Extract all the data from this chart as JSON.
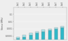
{
  "categories": [
    "Cat1",
    "Cat2",
    "Cat3",
    "Cat4",
    "Cat5",
    "Cat6",
    "Cat7",
    "Cat8"
  ],
  "values_dark": [
    5e-05,
    8e-05,
    0.00015,
    0.00025,
    0.0004,
    0.0006,
    0.0009,
    0.0015
  ],
  "values_light": [
    3e-05,
    5e-05,
    0.0001,
    0.00018,
    0.0003,
    0.0004,
    0.0006,
    0.001
  ],
  "bar_color_dark": "#30b8c8",
  "bar_color_light": "#a8e8f0",
  "edge_color": "#999999",
  "background_color": "#eeeeee",
  "ylabel": "Stress (MPa)",
  "ylim_log": [
    -4.5,
    0
  ],
  "figsize": [
    1.0,
    0.61
  ],
  "dpi": 100
}
